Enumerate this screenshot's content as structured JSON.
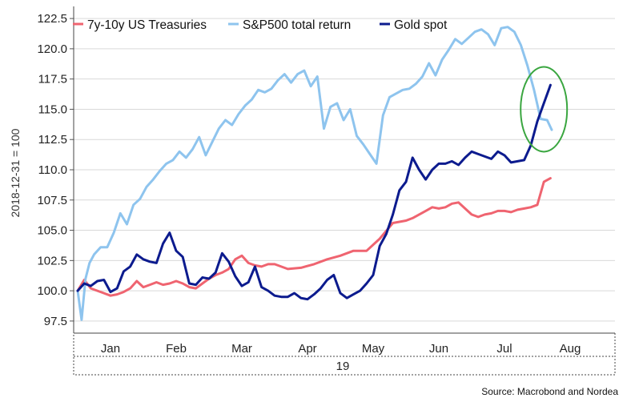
{
  "chart_data": {
    "type": "line",
    "ylabel": "2018-12-31 = 100",
    "ylim": [
      96.5,
      123.5
    ],
    "yticks": [
      "122.5",
      "120.0",
      "117.5",
      "115.0",
      "112.5",
      "110.0",
      "107.5",
      "105.0",
      "102.5",
      "100.0",
      "97.5"
    ],
    "xlim": [
      0,
      8
    ],
    "months": [
      "Jan",
      "Feb",
      "Mar",
      "Apr",
      "May",
      "Jun",
      "Jul",
      "Aug"
    ],
    "year_label": "19",
    "source": "Source: Macrobond and Nordea",
    "highlight": {
      "shape": "ellipse",
      "color": "#3aa640",
      "x": 7.1,
      "y": 115.0
    },
    "series": [
      {
        "name": "7y-10y US Treasuries",
        "color": "#ef6470",
        "x": [
          0,
          0.1,
          0.2,
          0.3,
          0.4,
          0.5,
          0.6,
          0.7,
          0.8,
          0.9,
          1.0,
          1.1,
          1.2,
          1.3,
          1.4,
          1.5,
          1.6,
          1.7,
          1.8,
          1.9,
          2.0,
          2.1,
          2.2,
          2.3,
          2.4,
          2.5,
          2.6,
          2.7,
          2.8,
          2.9,
          3.0,
          3.2,
          3.4,
          3.6,
          3.8,
          4.0,
          4.2,
          4.4,
          4.6,
          4.8,
          5.0,
          5.1,
          5.2,
          5.3,
          5.4,
          5.5,
          5.6,
          5.7,
          5.8,
          5.9,
          6.0,
          6.1,
          6.2,
          6.3,
          6.4,
          6.5,
          6.6,
          6.7,
          6.8,
          6.9,
          7.0,
          7.1,
          7.2
        ],
        "values": [
          100.0,
          100.9,
          100.2,
          100.0,
          99.8,
          99.6,
          99.7,
          99.9,
          100.2,
          100.8,
          100.3,
          100.5,
          100.7,
          100.5,
          100.6,
          100.8,
          100.6,
          100.3,
          100.2,
          100.6,
          101.0,
          101.3,
          101.5,
          101.8,
          102.6,
          102.9,
          102.3,
          102.1,
          102.0,
          102.2,
          102.2,
          101.8,
          101.9,
          102.2,
          102.6,
          102.9,
          103.3,
          103.3,
          104.3,
          105.6,
          105.8,
          106.0,
          106.3,
          106.6,
          106.9,
          106.8,
          106.9,
          107.2,
          107.3,
          106.8,
          106.3,
          106.1,
          106.3,
          106.4,
          106.6,
          106.6,
          106.5,
          106.7,
          106.8,
          106.9,
          107.1,
          109.0,
          109.3
        ]
      },
      {
        "name": "S&P500 total return",
        "color": "#8ec4ee",
        "x": [
          0,
          0.06,
          0.12,
          0.18,
          0.25,
          0.35,
          0.45,
          0.55,
          0.65,
          0.75,
          0.85,
          0.95,
          1.05,
          1.15,
          1.25,
          1.35,
          1.45,
          1.55,
          1.65,
          1.75,
          1.85,
          1.95,
          2.05,
          2.15,
          2.25,
          2.35,
          2.45,
          2.55,
          2.65,
          2.75,
          2.85,
          2.95,
          3.05,
          3.15,
          3.25,
          3.35,
          3.45,
          3.55,
          3.65,
          3.75,
          3.85,
          3.95,
          4.05,
          4.15,
          4.25,
          4.35,
          4.45,
          4.55,
          4.65,
          4.75,
          4.85,
          4.95,
          5.05,
          5.15,
          5.25,
          5.35,
          5.45,
          5.55,
          5.65,
          5.75,
          5.85,
          5.95,
          6.05,
          6.15,
          6.25,
          6.35,
          6.45,
          6.55,
          6.65,
          6.75,
          6.85,
          6.95,
          7.05,
          7.15,
          7.22
        ],
        "values": [
          100.0,
          97.6,
          101.0,
          102.3,
          103.0,
          103.6,
          103.6,
          104.8,
          106.4,
          105.5,
          107.1,
          107.6,
          108.6,
          109.2,
          109.9,
          110.5,
          110.8,
          111.5,
          111.0,
          111.7,
          112.7,
          111.2,
          112.3,
          113.4,
          114.1,
          113.7,
          114.6,
          115.3,
          115.8,
          116.6,
          116.4,
          116.7,
          117.4,
          117.9,
          117.2,
          117.9,
          118.2,
          116.9,
          117.7,
          113.4,
          115.2,
          115.5,
          114.1,
          115.0,
          112.8,
          112.1,
          111.3,
          110.5,
          114.5,
          116.0,
          116.3,
          116.6,
          116.7,
          117.1,
          117.7,
          118.8,
          117.8,
          119.1,
          119.9,
          120.8,
          120.4,
          120.9,
          121.4,
          121.6,
          121.2,
          120.3,
          121.7,
          121.8,
          121.4,
          120.3,
          118.6,
          116.6,
          114.2,
          114.1,
          113.3
        ]
      },
      {
        "name": "Gold spot",
        "color": "#0c1b8e",
        "x": [
          0,
          0.1,
          0.2,
          0.3,
          0.4,
          0.5,
          0.6,
          0.7,
          0.8,
          0.9,
          1.0,
          1.1,
          1.2,
          1.3,
          1.4,
          1.5,
          1.6,
          1.7,
          1.8,
          1.9,
          2.0,
          2.1,
          2.2,
          2.3,
          2.4,
          2.5,
          2.6,
          2.7,
          2.8,
          2.9,
          3.0,
          3.1,
          3.2,
          3.3,
          3.4,
          3.5,
          3.6,
          3.7,
          3.8,
          3.9,
          4.0,
          4.1,
          4.2,
          4.3,
          4.4,
          4.5,
          4.6,
          4.7,
          4.8,
          4.9,
          5.0,
          5.1,
          5.2,
          5.3,
          5.4,
          5.5,
          5.6,
          5.7,
          5.8,
          5.9,
          6.0,
          6.1,
          6.2,
          6.3,
          6.4,
          6.5,
          6.6,
          6.7,
          6.8,
          6.9,
          7.0,
          7.1,
          7.2
        ],
        "values": [
          100.0,
          100.6,
          100.4,
          100.8,
          100.9,
          99.9,
          100.2,
          101.6,
          102.0,
          103.0,
          102.6,
          102.4,
          102.3,
          103.9,
          104.8,
          103.3,
          102.8,
          100.6,
          100.5,
          101.1,
          101.0,
          101.5,
          103.1,
          102.4,
          101.2,
          100.4,
          100.7,
          102.0,
          100.3,
          100.0,
          99.6,
          99.5,
          99.5,
          99.8,
          99.4,
          99.3,
          99.7,
          100.2,
          100.9,
          101.3,
          99.8,
          99.4,
          99.7,
          100.0,
          100.6,
          101.3,
          103.7,
          104.7,
          106.3,
          108.3,
          109.0,
          111.0,
          110.0,
          109.2,
          110.0,
          110.5,
          110.5,
          110.7,
          110.4,
          111.0,
          111.5,
          111.3,
          111.1,
          110.9,
          111.5,
          111.2,
          110.6,
          110.7,
          110.8,
          112.0,
          114.0,
          115.5,
          117.0
        ]
      }
    ]
  }
}
